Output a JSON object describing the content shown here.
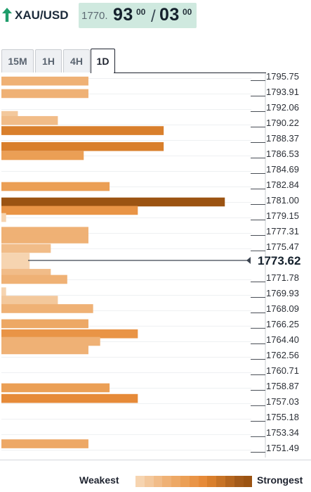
{
  "header": {
    "symbol": "XAU/USD",
    "direction_icon": "arrow-up-icon",
    "price_prefix": "1770.",
    "price_main": "93",
    "price_sup1": "00",
    "price_slash": "/",
    "price_main2": "03",
    "price_sup2": "00"
  },
  "tabs": [
    {
      "label": "15M",
      "active": false
    },
    {
      "label": "1H",
      "active": false
    },
    {
      "label": "4H",
      "active": false
    },
    {
      "label": "1D",
      "active": true
    }
  ],
  "legend": {
    "weakest": "Weakest",
    "strongest": "Strongest",
    "colors": [
      "#f6d4b0",
      "#f3c89c",
      "#f1bc88",
      "#efb175",
      "#eda865",
      "#eb9f55",
      "#e99446",
      "#e68a38",
      "#d97f2c",
      "#c77326",
      "#b5661f",
      "#a35a19",
      "#9b5312"
    ]
  },
  "chart_data": {
    "type": "bar",
    "current_price": "1773.62",
    "price_levels": [
      "1795.75",
      "1793.91",
      "1792.06",
      "1790.22",
      "1788.37",
      "1786.53",
      "1784.69",
      "1782.84",
      "1781.00",
      "1779.15",
      "1777.31",
      "1775.47",
      "1771.78",
      "1769.93",
      "1768.09",
      "1766.25",
      "1764.40",
      "1762.56",
      "1760.71",
      "1758.87",
      "1757.03",
      "1755.18",
      "1753.34",
      "1751.49"
    ],
    "bars": [
      {
        "level": 1795.4,
        "strength": 0.37,
        "shade": 3
      },
      {
        "level": 1793.91,
        "strength": 0.37,
        "shade": 3
      },
      {
        "level": 1791.3,
        "strength": 0.07,
        "shade": 1
      },
      {
        "level": 1790.7,
        "strength": 0.24,
        "shade": 2
      },
      {
        "level": 1789.5,
        "strength": 0.69,
        "shade": 8
      },
      {
        "level": 1787.6,
        "strength": 0.69,
        "shade": 8
      },
      {
        "level": 1786.53,
        "strength": 0.35,
        "shade": 5
      },
      {
        "level": 1782.84,
        "strength": 0.46,
        "shade": 5
      },
      {
        "level": 1781.0,
        "strength": 0.95,
        "shade": 12
      },
      {
        "level": 1780.0,
        "strength": 0.58,
        "shade": 6
      },
      {
        "level": 1779.15,
        "strength": 0.02,
        "shade": 0
      },
      {
        "level": 1777.5,
        "strength": 0.37,
        "shade": 3
      },
      {
        "level": 1776.6,
        "strength": 0.37,
        "shade": 3
      },
      {
        "level": 1775.47,
        "strength": 0.21,
        "shade": 2
      },
      {
        "level": 1774.4,
        "strength": 0.12,
        "shade": 0
      },
      {
        "level": 1773.5,
        "strength": 0.12,
        "shade": 0
      },
      {
        "level": 1772.5,
        "strength": 0.21,
        "shade": 2
      },
      {
        "level": 1771.78,
        "strength": 0.28,
        "shade": 3
      },
      {
        "level": 1770.3,
        "strength": 0.02,
        "shade": 0
      },
      {
        "level": 1769.3,
        "strength": 0.24,
        "shade": 1
      },
      {
        "level": 1768.3,
        "strength": 0.39,
        "shade": 3
      },
      {
        "level": 1766.5,
        "strength": 0.37,
        "shade": 4
      },
      {
        "level": 1765.3,
        "strength": 0.58,
        "shade": 6
      },
      {
        "level": 1764.4,
        "strength": 0.42,
        "shade": 3
      },
      {
        "level": 1763.4,
        "strength": 0.37,
        "shade": 3
      },
      {
        "level": 1758.87,
        "strength": 0.46,
        "shade": 5
      },
      {
        "level": 1757.6,
        "strength": 0.58,
        "shade": 7
      },
      {
        "level": 1752.2,
        "strength": 0.37,
        "shade": 4
      }
    ]
  }
}
